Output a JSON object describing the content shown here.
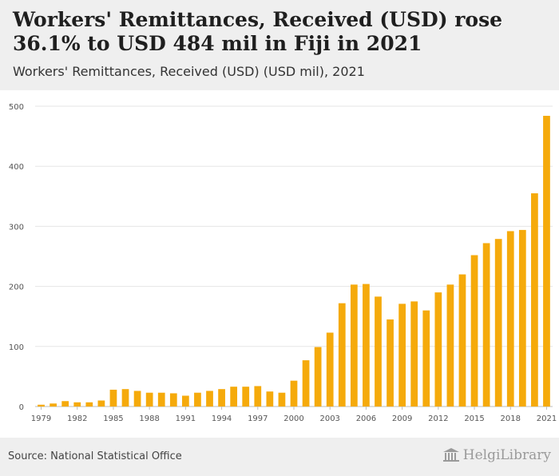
{
  "header": {
    "title": "Workers' Remittances, Received (USD) rose 36.1% to USD 484 mil in Fiji in 2021",
    "subtitle": "Workers' Remittances, Received (USD) (USD mil), 2021"
  },
  "footer": {
    "source": "Source: National Statistical Office",
    "brand": "HelgiLibrary",
    "brand_icon": "library-building-icon"
  },
  "colors": {
    "bar": "#f5aa0b",
    "grid": "#e6e6e6",
    "header_bg": "#efefef"
  },
  "chart_data": {
    "type": "bar",
    "title": "",
    "xlabel": "",
    "ylabel": "",
    "ylim": [
      0,
      500
    ],
    "yticks": [
      0,
      100,
      200,
      300,
      400,
      500
    ],
    "grid": true,
    "categories": [
      "1979",
      "1980",
      "1981",
      "1982",
      "1983",
      "1984",
      "1985",
      "1986",
      "1987",
      "1988",
      "1989",
      "1990",
      "1991",
      "1992",
      "1993",
      "1994",
      "1995",
      "1996",
      "1997",
      "1998",
      "1999",
      "2000",
      "2001",
      "2002",
      "2003",
      "2004",
      "2005",
      "2006",
      "2007",
      "2008",
      "2009",
      "2010",
      "2011",
      "2012",
      "2013",
      "2014",
      "2015",
      "2016",
      "2017",
      "2018",
      "2019",
      "2020",
      "2021"
    ],
    "xticks": [
      "1979",
      "1982",
      "1985",
      "1988",
      "1991",
      "1994",
      "1997",
      "2000",
      "2003",
      "2006",
      "2009",
      "2012",
      "2015",
      "2018",
      "2021"
    ],
    "values": [
      3,
      5,
      9,
      7,
      7,
      10,
      28,
      29,
      26,
      23,
      23,
      22,
      18,
      23,
      26,
      29,
      33,
      33,
      34,
      25,
      23,
      43,
      77,
      99,
      123,
      172,
      203,
      204,
      183,
      145,
      171,
      175,
      160,
      190,
      203,
      220,
      252,
      272,
      279,
      292,
      294,
      355,
      484
    ]
  }
}
